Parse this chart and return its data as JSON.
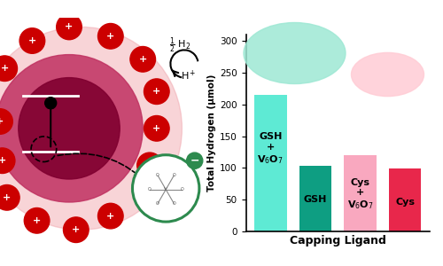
{
  "values": [
    215,
    103,
    120,
    99
  ],
  "bar_colors": [
    "#5EEAD4",
    "#0E9E82",
    "#F9A8BF",
    "#E8274B"
  ],
  "xlabel": "Capping Ligand",
  "ylabel": "Total Hydrogen (μmol)",
  "ylim": [
    0,
    310
  ],
  "yticks": [
    0,
    50,
    100,
    150,
    200,
    250,
    300
  ],
  "background_color": "#ffffff",
  "gsh_circle_color": "#9EE8D4",
  "cys_circle_color": "#FFCCD5",
  "plus_color": "#CC0000",
  "outer_halo_color": "#F0A0A8",
  "mid_circle_color": "#C03060",
  "inner_circle_color": "#800030",
  "green_circle_color": "#2D8A4E",
  "label_fontsize": 8,
  "axis_label_fontsize": 9
}
